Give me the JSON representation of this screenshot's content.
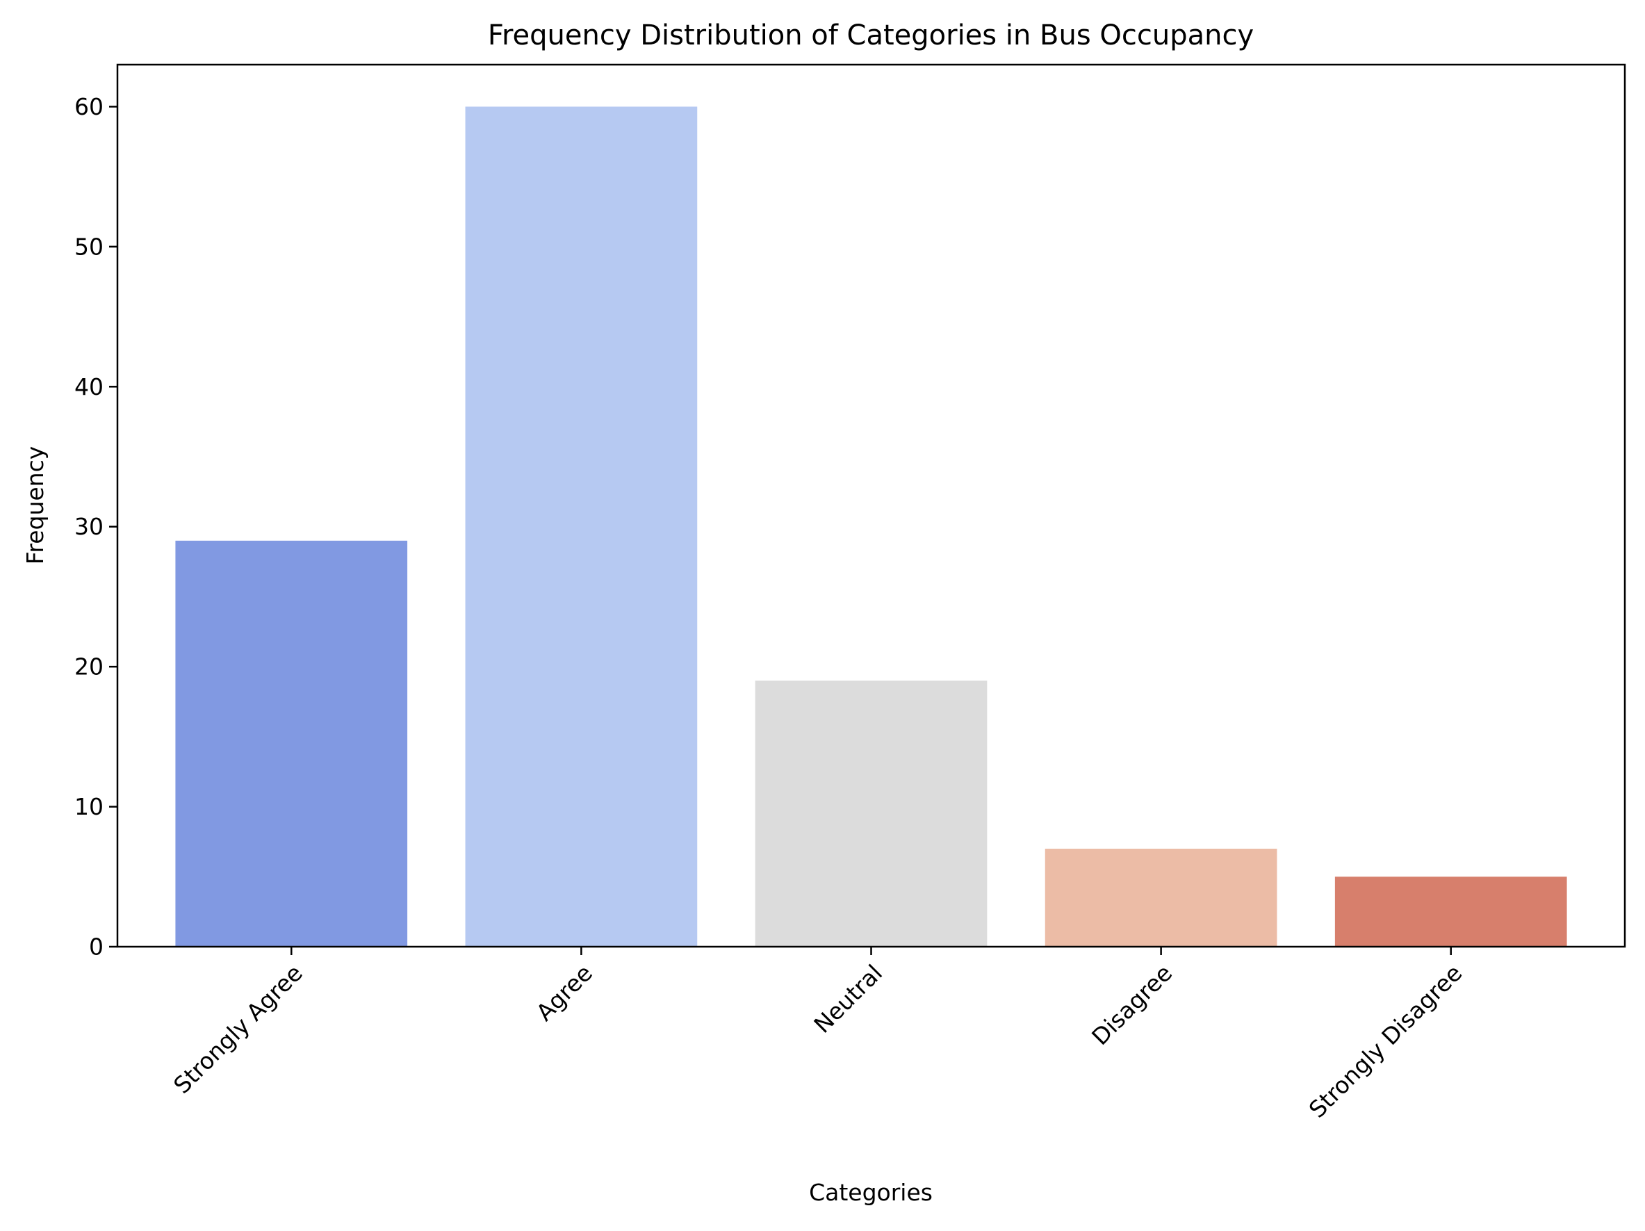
{
  "chart_data": {
    "type": "bar",
    "title": "Frequency Distribution of Categories in Bus Occupancy",
    "xlabel": "Categories",
    "ylabel": "Frequency",
    "categories": [
      "Strongly Agree",
      "Agree",
      "Neutral",
      "Disagree",
      "Strongly Disagree"
    ],
    "values": [
      29,
      60,
      19,
      7,
      5
    ],
    "colors": [
      "#8199e2",
      "#b6c9f2",
      "#dcdcdc",
      "#ecbca6",
      "#d77f6c"
    ],
    "ylim": [
      0,
      63
    ],
    "yticks": [
      0,
      10,
      20,
      30,
      40,
      50,
      60
    ],
    "grid": false,
    "legend": "none"
  }
}
